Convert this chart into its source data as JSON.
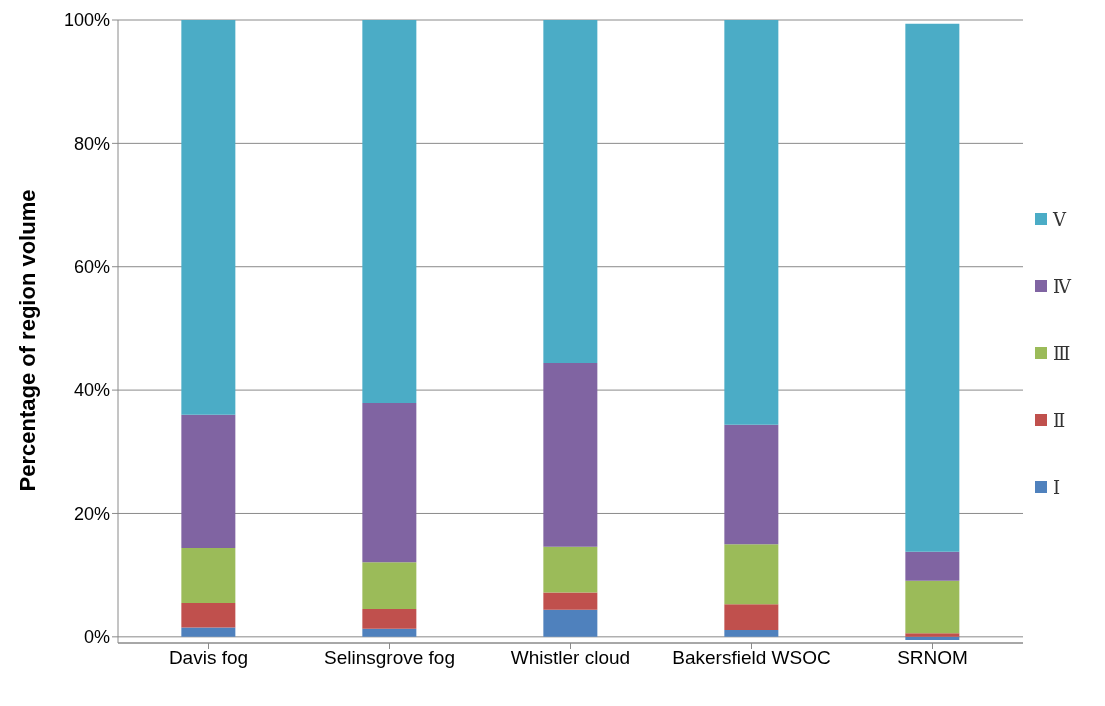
{
  "chart_data": {
    "type": "bar",
    "stacked": true,
    "ylabel": "Percentage  of region volume",
    "categories": [
      "Davis fog",
      "Selinsgrove fog",
      "Whistler cloud",
      "Bakersfield WSOC",
      "SRNOM"
    ],
    "series": [
      {
        "name": "Ⅰ",
        "color": "#4f81bd",
        "values": [
          1.5,
          1.3,
          4.4,
          1.1,
          -0.5
        ]
      },
      {
        "name": "Ⅱ",
        "color": "#c0504d",
        "values": [
          4.0,
          3.2,
          2.8,
          4.2,
          0.6
        ]
      },
      {
        "name": "Ⅲ",
        "color": "#9bbb59",
        "values": [
          8.9,
          7.6,
          7.4,
          9.7,
          8.5
        ]
      },
      {
        "name": "Ⅳ",
        "color": "#8064a2",
        "values": [
          21.6,
          25.8,
          29.8,
          19.4,
          4.7
        ]
      },
      {
        "name": "Ⅴ",
        "color": "#4bacc6",
        "values": [
          64.0,
          62.1,
          55.6,
          65.6,
          85.6
        ]
      }
    ],
    "ylim": [
      -1,
      100
    ],
    "yticks": [
      {
        "value": 0,
        "label": "0%"
      },
      {
        "value": 20,
        "label": "20%"
      },
      {
        "value": 40,
        "label": "40%"
      },
      {
        "value": 60,
        "label": "60%"
      },
      {
        "value": 80,
        "label": "80%"
      },
      {
        "value": 100,
        "label": "100%"
      }
    ],
    "grid": "y",
    "legend": "right"
  }
}
